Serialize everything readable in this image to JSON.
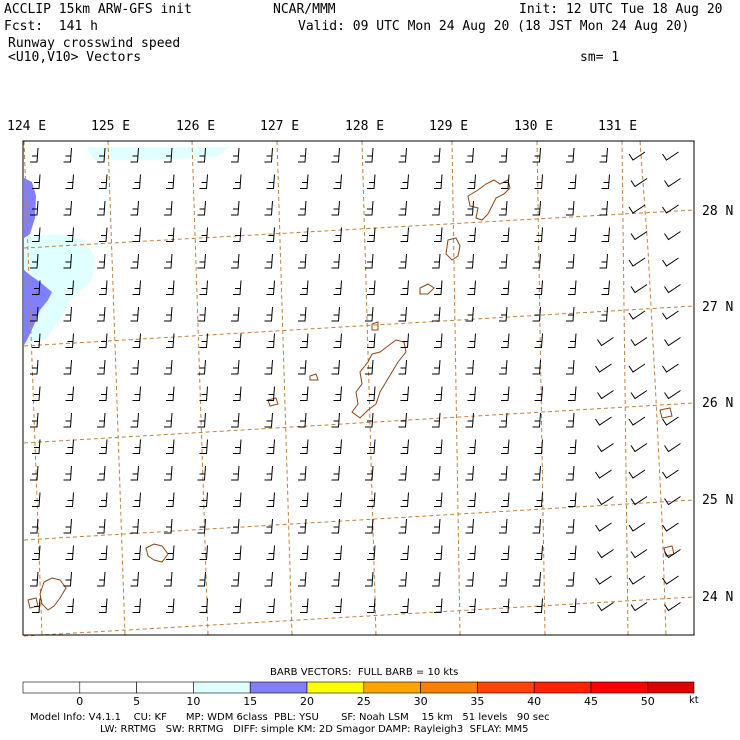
{
  "header": {
    "title_left": "ACCLIP 15km ARW-GFS init",
    "title_center": "NCAR/MMM",
    "init": "Init: 12 UTC Tue 18 Aug 20",
    "fcst": "Fcst:  141 h",
    "valid": "Valid: 09 UTC Mon 24 Aug 20 (18 JST Mon 24 Aug 20)",
    "field": "Runway crosswind speed",
    "vectors": "<U10,V10> Vectors",
    "smoothing": "sm= 1"
  },
  "map": {
    "lon_labels": [
      "124 E",
      "125 E",
      "126 E",
      "127 E",
      "128 E",
      "129 E",
      "130 E",
      "131 E"
    ],
    "lat_labels": [
      "28 N",
      "27 N",
      "26 N",
      "25 N",
      "24 N"
    ],
    "grid_color": "#c08040",
    "coast_color": "#8b4513"
  },
  "colorbar": {
    "title": "BARB VECTORS:  FULL BARB = 10 kts",
    "ticks": [
      "0",
      "5",
      "10",
      "15",
      "20",
      "25",
      "30",
      "35",
      "40",
      "45",
      "50"
    ],
    "unit": "kt",
    "colors": [
      "#ffffff",
      "#ffffff",
      "#ffffff",
      "#e0ffff",
      "#8080ff",
      "#ffff00",
      "#ffa500",
      "#ff7f00",
      "#ff4500",
      "#ff2000",
      "#ff0000"
    ]
  },
  "footer": {
    "line1": "Model Info: V4.1.1    CU: KF      MP: WDM 6class  PBL: YSU       SF: Noah LSM    15 km   51 levels   90 sec",
    "line2": "LW: RRTMG   SW: RRTMG   DIFF: simple KM: 2D Smagor DAMP: Rayleigh3  SFLAY: MM5"
  }
}
